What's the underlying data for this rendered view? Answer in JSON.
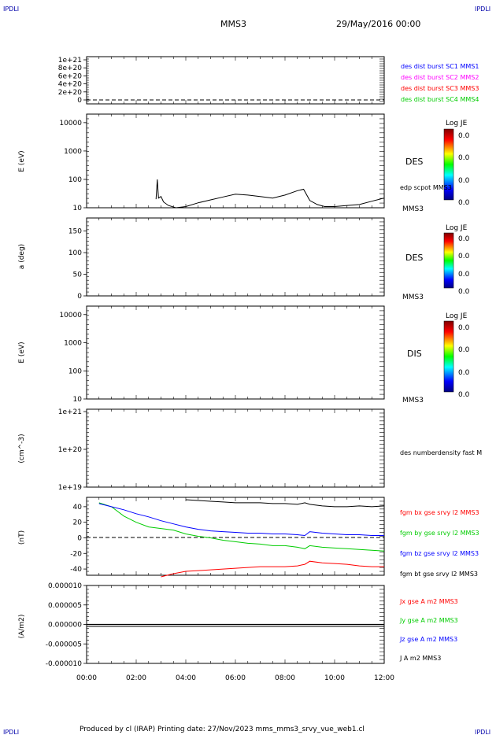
{
  "corner_label": "IPDLI",
  "header": {
    "spacecraft": "MMS3",
    "date": "29/May/2016 00:00"
  },
  "footer": "Produced by cl (IRAP)   Printing date: 27/Nov/2023   mms_mms3_srvy_vue_web1.cl",
  "colorbar_title": "Log JE",
  "colorbar_values": [
    "0.0",
    "0.0",
    "0.0",
    "0.0"
  ],
  "chart_data": [
    {
      "type": "line",
      "panel": "burst-status",
      "yticks": [
        "0",
        "2e+20",
        "4e+20",
        "6e+20",
        "8e+20",
        "1e+21"
      ],
      "ylim": [
        0,
        1e+21
      ],
      "series": [
        {
          "name": "des dist burst SC1 MMS1",
          "color": "#0000ff"
        },
        {
          "name": "des dist burst SC2 MMS2",
          "color": "#ff00ff"
        },
        {
          "name": "des dist burst SC3 MMS3",
          "color": "#ff0000"
        },
        {
          "name": "des dist burst SC4 MMS4",
          "color": "#00cc00"
        }
      ]
    },
    {
      "type": "line",
      "panel": "des-energy",
      "ylabel": "E (eV)",
      "yscale": "log",
      "ylim": [
        10,
        20000
      ],
      "yticks": [
        "10",
        "100",
        "1000",
        "10000"
      ],
      "label": "DES",
      "sc_label": "MMS3",
      "series": [
        {
          "name": "edp scpot MMS3",
          "color": "#000000"
        }
      ],
      "x": [
        2.8,
        2.85,
        2.9,
        3.0,
        3.1,
        3.3,
        3.6,
        4.0,
        4.5,
        5.0,
        5.5,
        6.0,
        6.5,
        7.0,
        7.5,
        8.0,
        8.5,
        8.75,
        9.0,
        9.3,
        9.6,
        10.0,
        10.5,
        11.0,
        11.5,
        12.0
      ],
      "values": [
        20,
        100,
        22,
        25,
        16,
        12,
        10,
        11,
        15,
        19,
        24,
        30,
        28,
        25,
        22,
        28,
        40,
        45,
        18,
        13,
        11,
        11,
        12,
        13,
        17,
        22
      ]
    },
    {
      "type": "heatmap",
      "panel": "des-pitch",
      "ylabel": "a (deg)",
      "yticks": [
        "0",
        "50",
        "100",
        "150"
      ],
      "ylim": [
        0,
        180
      ],
      "label": "DES",
      "sc_label": "MMS3"
    },
    {
      "type": "heatmap",
      "panel": "dis-energy",
      "ylabel": "E (eV)",
      "yscale": "log",
      "yticks": [
        "10",
        "100",
        "1000",
        "10000"
      ],
      "ylim": [
        10,
        20000
      ],
      "label": "DIS",
      "sc_label": "MMS3"
    },
    {
      "type": "line",
      "panel": "density",
      "ylabel": "(cm^-3)",
      "yscale": "log",
      "yticks": [
        "1e+19",
        "1e+20",
        "1e+21"
      ],
      "ylim": [
        1e+19,
        1e+21
      ],
      "series": [
        {
          "name": "des numberdensity fast M",
          "color": "#000000"
        }
      ]
    },
    {
      "type": "line",
      "panel": "magnetic-field",
      "ylabel": "(nT)",
      "ylim": [
        -48,
        52
      ],
      "yticks": [
        "-40",
        "-20",
        "0",
        "20",
        "40"
      ],
      "x": [
        0.5,
        1,
        1.5,
        2,
        2.5,
        3,
        3.5,
        4,
        4.5,
        5,
        5.5,
        6,
        6.5,
        7,
        7.5,
        8,
        8.5,
        8.8,
        9,
        9.5,
        10,
        10.5,
        11,
        11.5,
        12
      ],
      "series": [
        {
          "name": "fgm bx gse srvy l2 MMS3",
          "color": "#ff0000",
          "values": [
            null,
            null,
            null,
            null,
            null,
            -50,
            -46,
            -43,
            -42,
            -41,
            -40,
            -39,
            -38,
            -37,
            -37,
            -37,
            -36,
            -34,
            -30,
            -32,
            -33,
            -34,
            -36,
            -37,
            -37
          ]
        },
        {
          "name": "fgm by gse srvy l2 MMS3",
          "color": "#00cc00",
          "values": [
            45,
            40,
            28,
            20,
            14,
            12,
            10,
            5,
            2,
            0,
            -3,
            -5,
            -7,
            -8,
            -10,
            -10,
            -12,
            -14,
            -10,
            -12,
            -13,
            -14,
            -15,
            -16,
            -17
          ]
        },
        {
          "name": "fgm bz gse srvy l2 MMS3",
          "color": "#0000ff",
          "values": [
            44,
            40,
            36,
            31,
            27,
            22,
            18,
            14,
            11,
            9,
            8,
            7,
            6,
            6,
            5,
            5,
            4,
            3,
            8,
            6,
            5,
            4,
            4,
            3,
            3
          ]
        },
        {
          "name": "fgm bt gse srvy l2 MMS3",
          "color": "#000000",
          "values": [
            null,
            null,
            null,
            null,
            null,
            null,
            null,
            49,
            48,
            47,
            46,
            45,
            45,
            45,
            44,
            44,
            43,
            45,
            43,
            41,
            40,
            40,
            41,
            40,
            41
          ]
        }
      ]
    },
    {
      "type": "line",
      "panel": "current-density",
      "ylabel": "(A/m2)",
      "ylim": [
        -1e-05,
        1e-05
      ],
      "yticks": [
        "-0.000010",
        "-0.000005",
        "0.000000",
        "0.000005",
        "0.000010"
      ],
      "xticks": [
        "00:00",
        "02:00",
        "04:00",
        "06:00",
        "08:00",
        "10:00",
        "12:00"
      ],
      "xlim": [
        0,
        12
      ],
      "series": [
        {
          "name": "Jx gse A m2 MMS3",
          "color": "#ff0000"
        },
        {
          "name": "Jy gse A m2 MMS3",
          "color": "#00cc00"
        },
        {
          "name": "Jz gse A m2 MMS3",
          "color": "#0000ff"
        },
        {
          "name": "J A m2 MMS3",
          "color": "#000000"
        }
      ],
      "x": [
        0,
        2,
        4,
        6,
        8,
        10,
        12
      ],
      "values": [
        0,
        0,
        0,
        0,
        0,
        0,
        0
      ]
    }
  ]
}
